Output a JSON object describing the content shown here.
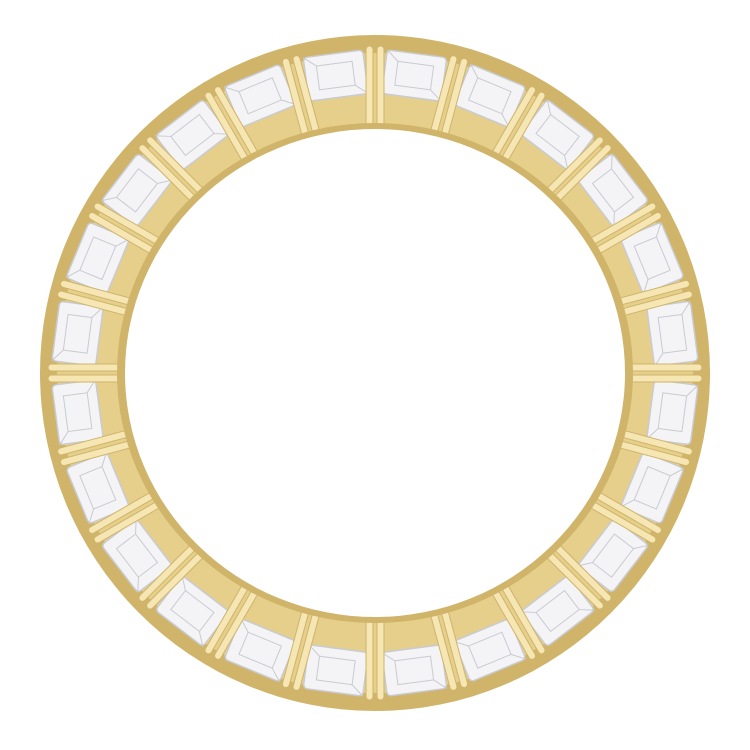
{
  "image": {
    "subject": "eternity-ring",
    "stone_count": 24,
    "colors": {
      "background": "#ffffff",
      "gold": "#e6cf8a",
      "gold_shadow": "#cfb46a",
      "gold_highlight": "#f5e6b4",
      "stone": "#f4f4f6",
      "stone_facet": "#c9cbd2"
    }
  }
}
